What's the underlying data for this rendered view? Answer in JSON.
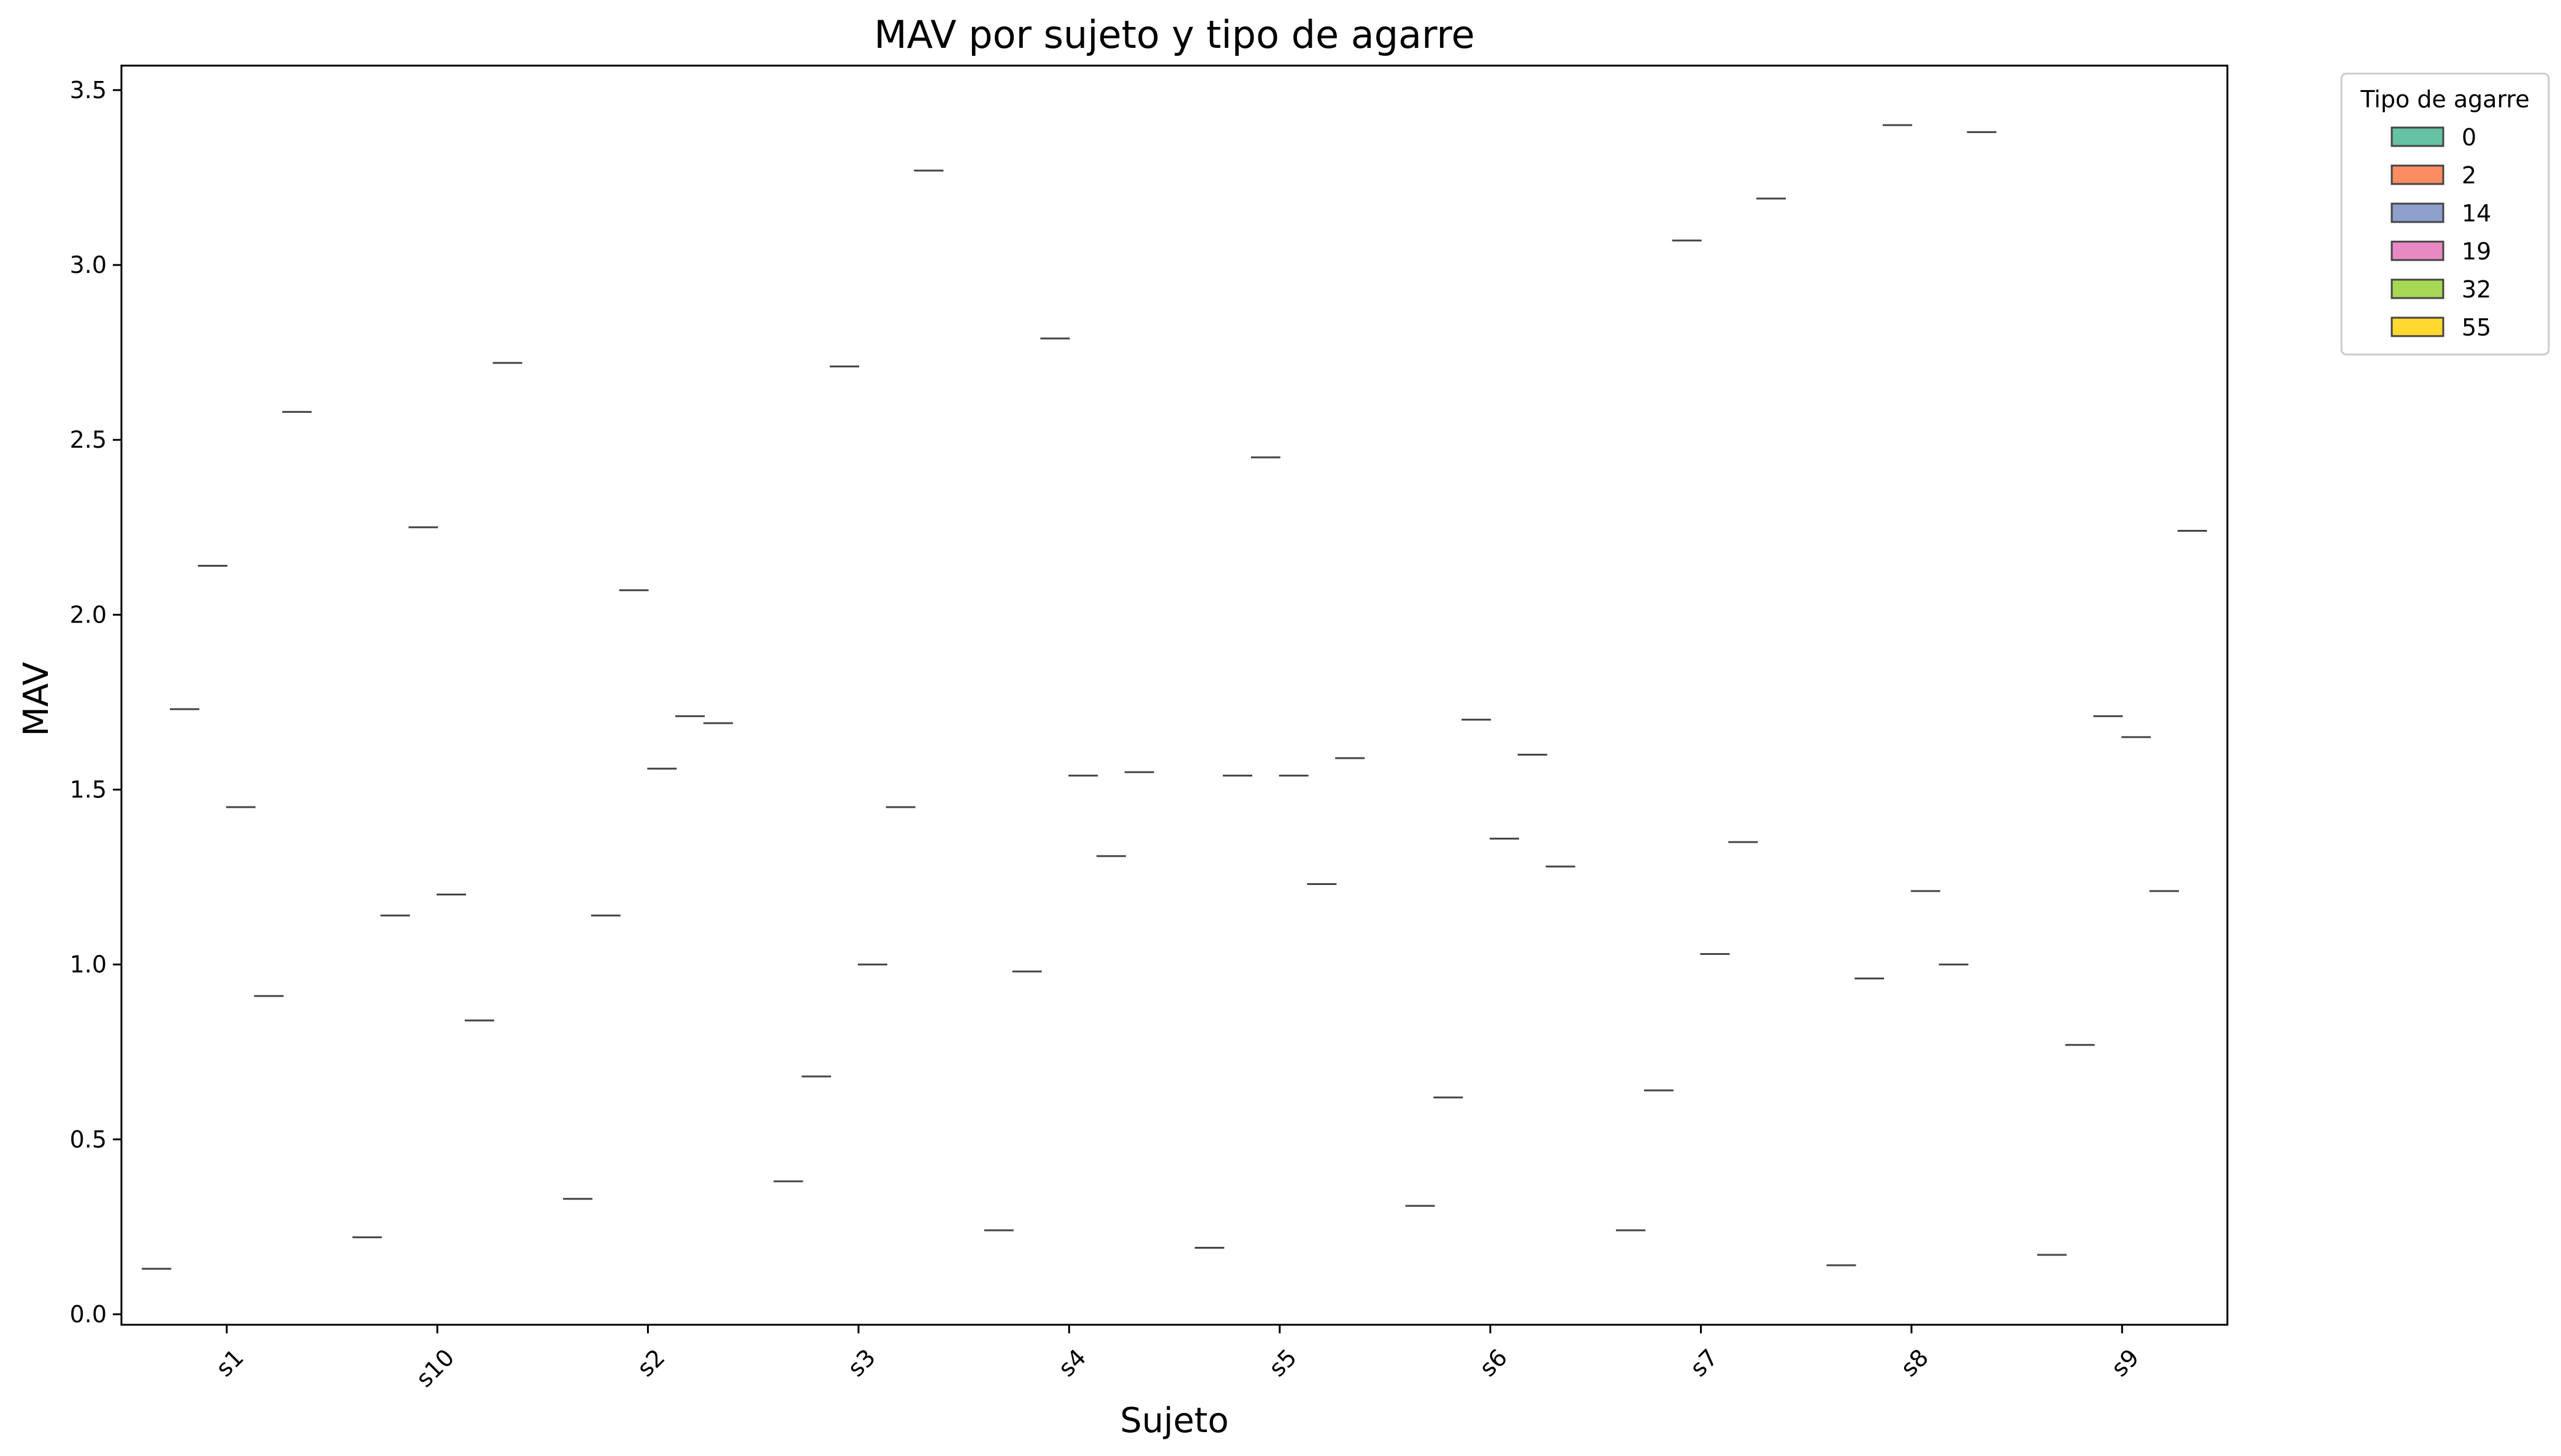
{
  "chart_data": {
    "type": "violin",
    "title": "MAV por sujeto y tipo de agarre",
    "xlabel": "Sujeto",
    "ylabel": "MAV",
    "categories": [
      "s1",
      "s10",
      "s2",
      "s3",
      "s4",
      "s5",
      "s6",
      "s7",
      "s8",
      "s9"
    ],
    "yticks": [
      "0.0",
      "0.5",
      "1.0",
      "1.5",
      "2.0",
      "2.5",
      "3.0",
      "3.5"
    ],
    "ylim": [
      -0.03,
      3.57
    ],
    "grid": false,
    "legend": {
      "title": "Tipo de agarre",
      "placement": "outside-top-right"
    },
    "series": [
      {
        "name": "0",
        "color": "#66c2a5",
        "values": [
          0.13,
          0.22,
          0.33,
          0.38,
          0.24,
          0.19,
          0.31,
          0.24,
          0.14,
          0.17
        ]
      },
      {
        "name": "2",
        "color": "#fc8d62",
        "values": [
          1.73,
          1.14,
          1.14,
          0.68,
          0.98,
          1.54,
          0.62,
          0.64,
          0.96,
          0.77
        ]
      },
      {
        "name": "14",
        "color": "#8da0cb",
        "values": [
          2.14,
          2.25,
          2.07,
          2.71,
          2.79,
          2.45,
          1.7,
          3.07,
          3.4,
          1.71
        ]
      },
      {
        "name": "19",
        "color": "#e78ac3",
        "values": [
          1.45,
          1.2,
          1.56,
          1.0,
          1.54,
          1.54,
          1.36,
          1.03,
          1.21,
          1.65
        ]
      },
      {
        "name": "32",
        "color": "#a6d854",
        "values": [
          0.91,
          0.84,
          1.71,
          1.45,
          1.31,
          1.23,
          1.6,
          1.35,
          1.0,
          1.21
        ]
      },
      {
        "name": "55",
        "color": "#ffd92f",
        "values": [
          2.58,
          2.72,
          1.69,
          3.27,
          1.55,
          1.59,
          1.28,
          3.19,
          3.38,
          2.24
        ]
      }
    ]
  }
}
